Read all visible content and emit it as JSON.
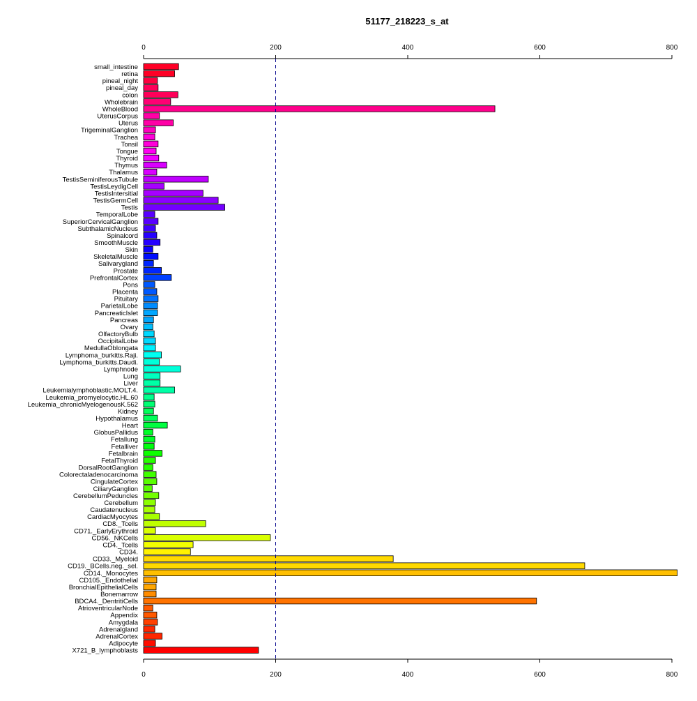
{
  "chart_data": {
    "type": "bar",
    "orientation": "horizontal",
    "title": "51177_218223_s_at",
    "xlabel": "",
    "ylabel": "",
    "xlim": [
      0,
      800
    ],
    "x_ticks": [
      0,
      200,
      400,
      600,
      800
    ],
    "x_tick_labels": [
      "0",
      "200",
      "400",
      "600",
      "800"
    ],
    "axis_position": "top and bottom",
    "reference_line": {
      "value": 200,
      "style": "dashed",
      "color": "#00008B"
    },
    "grid": false,
    "legend": "none",
    "categories": [
      "small_intestine",
      "retina",
      "pineal_night",
      "pineal_day",
      "colon",
      "Wholebrain",
      "WholeBlood",
      "UterusCorpus",
      "Uterus",
      "TrigeminalGanglion",
      "Trachea",
      "Tonsil",
      "Tongue",
      "Thyroid",
      "Thymus",
      "Thalamus",
      "TestisSeminiferousTubule",
      "TestisLeydigCell",
      "TestisIntersitial",
      "TestisGermCell",
      "Testis",
      "TemporalLobe",
      "SuperiorCervicalGanglion",
      "SubthalamicNucleus",
      "Spinalcord",
      "SmoothMuscle",
      "Skin",
      "SkeletalMuscle",
      "Salivarygland",
      "Prostate",
      "PrefrontalCortex",
      "Pons",
      "Placenta",
      "Pituitary",
      "ParietalLobe",
      "PancreaticIslet",
      "Pancreas",
      "Ovary",
      "OlfactoryBulb",
      "OccipitalLobe",
      "MedullaOblongata",
      "Lymphoma_burkitts.Raji.",
      "Lymphoma_burkitts.Daudi.",
      "Lymphnode",
      "Lung",
      "Liver",
      "Leukemialymphoblastic.MOLT.4.",
      "Leukemia_promyelocytic.HL.60",
      "Leukemia_chronicMyelogenousK.562",
      "Kidney",
      "Hypothalamus",
      "Heart",
      "GlobusPallidus",
      "Fetallung",
      "Fetalliver",
      "Fetalbrain",
      "FetalThyroid",
      "DorsalRootGanglion",
      "Colorectaladenocarcinoma",
      "CingulateCortex",
      "CiliaryGanglion",
      "CerebellumPeduncles",
      "Cerebellum",
      "Caudatenucleus",
      "CardiacMyocytes",
      "CD8._Tcells",
      "CD71._EarlyErythroid",
      "CD56._NKCells",
      "CD4._Tcells",
      "CD34.",
      "CD33._Myeloid",
      "CD19._BCells.neg._sel.",
      "CD14._Monocytes",
      "CD105._Endothelial",
      "BronchialEpithelialCells",
      "Bonemarrow",
      "BDCA4._DentritiCells",
      "AtrioventricularNode",
      "Appendix",
      "Amygdala",
      "Adrenalgland",
      "AdrenalCortex",
      "Adipocyte",
      "X721_B_lymphoblasts"
    ],
    "values": [
      53,
      47,
      21,
      22,
      52,
      41,
      532,
      24,
      45,
      18,
      17,
      22,
      19,
      23,
      35,
      20,
      98,
      31,
      90,
      113,
      123,
      17,
      22,
      18,
      20,
      25,
      14,
      22,
      15,
      27,
      42,
      17,
      20,
      22,
      21,
      21,
      15,
      14,
      16,
      18,
      18,
      27,
      24,
      56,
      25,
      25,
      47,
      16,
      17,
      15,
      21,
      36,
      14,
      17,
      16,
      28,
      18,
      14,
      19,
      20,
      13,
      23,
      18,
      17,
      24,
      94,
      18,
      192,
      75,
      71,
      378,
      668,
      808,
      20,
      19,
      19,
      595,
      14,
      20,
      21,
      17,
      28,
      18,
      174
    ],
    "colors": [
      "#FF0026",
      "#FF0040",
      "#FF0059",
      "#FF0073",
      "#FF008C",
      "#FF00A6",
      "#FF00BF",
      "#FF00D9",
      "#FF00F2",
      "#F200FF",
      "#D900FF",
      "#BF00FF",
      "#A600FF",
      "#8C00FF",
      "#7300FF",
      "#5900FF",
      "#4000FF",
      "#2600FF",
      "#0D00FF",
      "#000DFF",
      "#0026FF",
      "#0040FF",
      "#0059FF",
      "#0073FF",
      "#008CFF",
      "#00A6FF",
      "#00BFFF",
      "#00D9FF",
      "#00F2FF",
      "#00FFF2",
      "#00FFD9",
      "#00FFBF",
      "#00FFA6",
      "#00FF8C",
      "#00FF73",
      "#00FF59",
      "#00FF40",
      "#00FF26",
      "#00FF0D",
      "#0DFF00",
      "#26FF00",
      "#40FF00",
      "#59FF00",
      "#73FF00",
      "#8CFF00",
      "#A6FF00",
      "#BFFF00",
      "#D9FF00",
      "#F2FF00",
      "#FFF200",
      "#FFD900",
      "#FFBF00",
      "#FFA600",
      "#FF8C00",
      "#FF7300",
      "#FF5900",
      "#FF4000",
      "#FF2600",
      "#FF0D00",
      "#FF0000"
    ]
  }
}
